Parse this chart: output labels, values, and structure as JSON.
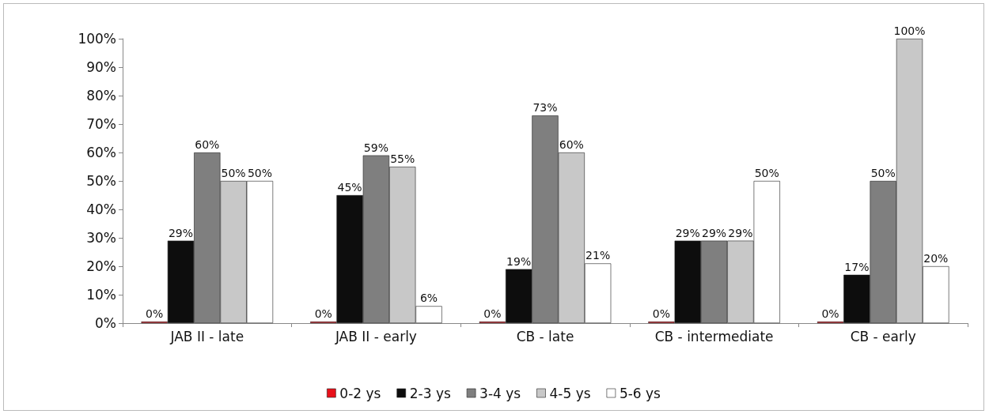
{
  "chart_data": {
    "type": "bar",
    "categories": [
      "JAB II - late",
      "JAB II - early",
      "CB - late",
      "CB - intermediate",
      "CB - early"
    ],
    "series": [
      {
        "name": "0-2 ys",
        "color": "#e8101a",
        "values": [
          0,
          0,
          0,
          0,
          0
        ],
        "value_labels": [
          "0%",
          "0%",
          "0%",
          "0%",
          "0%"
        ]
      },
      {
        "name": "2-3 ys",
        "color": "#0d0d0d",
        "values": [
          29,
          45,
          19,
          29,
          17
        ],
        "value_labels": [
          "29%",
          "45%",
          "19%",
          "29%",
          "17%"
        ]
      },
      {
        "name": "3-4 ys",
        "color": "#7f7f7f",
        "values": [
          60,
          59,
          73,
          29,
          50
        ],
        "value_labels": [
          "60%",
          "59%",
          "73%",
          "29%",
          "50%"
        ]
      },
      {
        "name": "4-5 ys",
        "color": "#c8c8c8",
        "values": [
          50,
          55,
          60,
          29,
          100
        ],
        "value_labels": [
          "50%",
          "55%",
          "60%",
          "29%",
          "100%"
        ]
      },
      {
        "name": "5-6 ys",
        "color": "#ffffff",
        "values": [
          50,
          6,
          21,
          50,
          20
        ],
        "value_labels": [
          "50%",
          "6%",
          "21%",
          "50%",
          "20%"
        ]
      }
    ],
    "ylim": [
      0,
      100
    ],
    "yticks": [
      {
        "value": 0,
        "label": "0%"
      },
      {
        "value": 10,
        "label": "10%"
      },
      {
        "value": 20,
        "label": "20%"
      },
      {
        "value": 30,
        "label": "30%"
      },
      {
        "value": 40,
        "label": "40%"
      },
      {
        "value": 50,
        "label": "50%"
      },
      {
        "value": 60,
        "label": "60%"
      },
      {
        "value": 70,
        "label": "70%"
      },
      {
        "value": 80,
        "label": "80%"
      },
      {
        "value": 90,
        "label": "90%"
      },
      {
        "value": 100,
        "label": "100%"
      }
    ],
    "grid": false,
    "legend": "bottom"
  }
}
